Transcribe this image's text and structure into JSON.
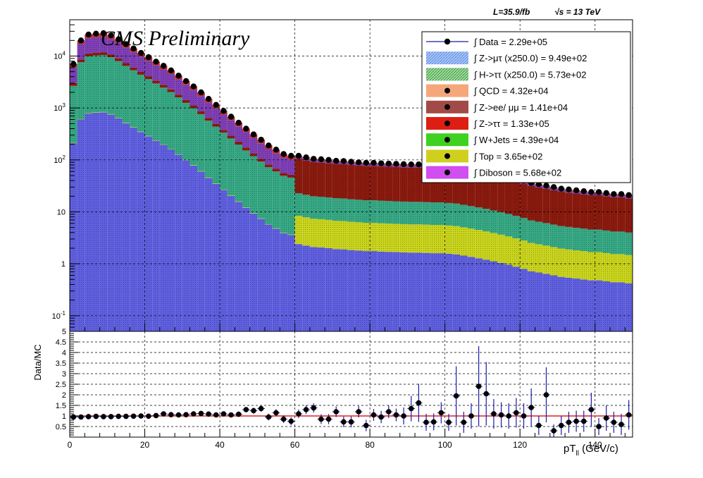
{
  "header": {
    "lumi": "L=35.9/fb",
    "energy": "√s = 13 TeV",
    "cms_label": "CMS Preliminary"
  },
  "chart_data": [
    {
      "type": "bar",
      "subtype": "stacked-histogram-log",
      "xlim": [
        0,
        150
      ],
      "ylog": true,
      "ylim": [
        0.05,
        50000
      ],
      "y_tick_labels": [
        {
          "v": 0.1,
          "label": "10^{-1}"
        },
        {
          "v": 1,
          "label": "1"
        },
        {
          "v": 10,
          "label": "10"
        },
        {
          "v": 100,
          "label": "10^{2}"
        },
        {
          "v": 1000,
          "label": "10^{3}"
        },
        {
          "v": 10000,
          "label": "10^{4}"
        }
      ],
      "bin_width": 2,
      "grid": true,
      "legend_placement": "top-right",
      "legend": [
        {
          "label": "∫ Data = 2.29e+05",
          "color": "#000000",
          "style": "marker-line"
        },
        {
          "label": "∫ Z->μτ (x250.0) = 9.49e+02",
          "color": "#6fa0ef",
          "style": "hatch"
        },
        {
          "label": "∫ H->ττ (x250.0) = 5.73e+02",
          "color": "#4db34d",
          "style": "hatch"
        },
        {
          "label": "∫ QCD = 4.32e+04",
          "color": "#f5a77a",
          "style": "fill"
        },
        {
          "label": "∫ Z->ee/ μμ = 1.41e+04",
          "color": "#a24a47",
          "style": "fill"
        },
        {
          "label": "∫ Z->ττ = 1.33e+05",
          "color": "#de1e13",
          "style": "fill"
        },
        {
          "label": "∫ W+Jets = 4.39e+04",
          "color": "#3fd11f",
          "style": "fill"
        },
        {
          "label": "∫ Top = 3.65e+02",
          "color": "#cfd01e",
          "style": "fill"
        },
        {
          "label": "∫ Diboson = 5.68e+02",
          "color": "#d14ef0",
          "style": "fill"
        }
      ],
      "stack_order": [
        "Diboson",
        "Top",
        "W+Jets",
        "Z->ττ",
        "Z->ee/μμ",
        "QCD"
      ],
      "stack_colors": [
        "#5f5fe0",
        "#c9d41c",
        "#36a884",
        "#8b1a0e",
        "#7e3fb6",
        "#c43030"
      ],
      "data_points": {
        "x": [
          1,
          3,
          5,
          7,
          9,
          11,
          13,
          15,
          17,
          19,
          21,
          23,
          25,
          27,
          29,
          31,
          33,
          35,
          37,
          39,
          41,
          43,
          45,
          47,
          49,
          51,
          53,
          55,
          57,
          59,
          61,
          63,
          65,
          67,
          69,
          71,
          73,
          75,
          77,
          79,
          81,
          83,
          85,
          87,
          89,
          91,
          93,
          95,
          97,
          99,
          101,
          103,
          105,
          107,
          109,
          111,
          113,
          115,
          117,
          119,
          121,
          123,
          125,
          127,
          129,
          131,
          133,
          135,
          137,
          139,
          141,
          143,
          145,
          147,
          149
        ],
        "y": [
          7000,
          20000,
          26000,
          27000,
          27500,
          25000,
          21000,
          17000,
          14000,
          11500,
          9500,
          7800,
          6500,
          5300,
          4200,
          3300,
          2600,
          2000,
          1500,
          1150,
          880,
          680,
          520,
          400,
          310,
          245,
          190,
          158,
          130,
          120,
          120,
          112,
          105,
          103,
          100,
          96,
          95,
          92,
          90,
          88,
          88,
          86,
          85,
          84,
          83,
          82,
          82,
          81,
          80,
          80,
          78,
          76,
          72,
          68,
          64,
          60,
          56,
          52,
          48,
          44,
          40,
          36,
          34,
          32,
          30,
          28,
          27,
          26,
          25,
          24,
          24,
          23,
          22,
          22,
          21
        ]
      },
      "mc_total": [
        7000,
        20000,
        26000,
        27000,
        27500,
        25000,
        21000,
        17000,
        14000,
        11500,
        9500,
        7800,
        6500,
        5300,
        4200,
        3300,
        2600,
        2000,
        1500,
        1150,
        880,
        680,
        520,
        400,
        310,
        245,
        190,
        158,
        130,
        120,
        120,
        112,
        105,
        103,
        100,
        96,
        95,
        92,
        90,
        88,
        88,
        86,
        85,
        84,
        83,
        82,
        82,
        81,
        80,
        80,
        78,
        76,
        72,
        68,
        64,
        60,
        56,
        52,
        48,
        44,
        40,
        36,
        34,
        32,
        30,
        28,
        27,
        26,
        25,
        24,
        24,
        23,
        22,
        22,
        21
      ]
    },
    {
      "type": "scatter",
      "subtype": "ratio-with-errors",
      "xlabel": "pT_{ll} (GeV/c)",
      "ylabel": "Data/MC",
      "xlim": [
        0,
        150
      ],
      "ylim": [
        0,
        5
      ],
      "x_ticks": [
        0,
        20,
        40,
        60,
        80,
        100,
        120,
        140
      ],
      "y_ticks": [
        0.5,
        1,
        1.5,
        2,
        2.5,
        3,
        3.5,
        4,
        4.5,
        5
      ],
      "reference_line": 1,
      "reference_color": "#e02020",
      "grid": true,
      "x": [
        1,
        3,
        5,
        7,
        9,
        11,
        13,
        15,
        17,
        19,
        21,
        23,
        25,
        27,
        29,
        31,
        33,
        35,
        37,
        39,
        41,
        43,
        45,
        47,
        49,
        51,
        53,
        55,
        57,
        59,
        61,
        63,
        65,
        67,
        69,
        71,
        73,
        75,
        77,
        79,
        81,
        83,
        85,
        87,
        89,
        91,
        93,
        95,
        97,
        99,
        101,
        103,
        105,
        107,
        109,
        111,
        113,
        115,
        117,
        119,
        121,
        123,
        125,
        127,
        129,
        131,
        133,
        135,
        137,
        139,
        141,
        143,
        145,
        147,
        149
      ],
      "y": [
        0.95,
        0.95,
        0.97,
        0.98,
        0.97,
        0.97,
        0.98,
        0.98,
        0.99,
        1.0,
        0.99,
        1.02,
        1.1,
        1.06,
        1.05,
        1.06,
        1.1,
        1.12,
        1.09,
        1.05,
        1.1,
        1.05,
        1.08,
        1.3,
        1.25,
        1.35,
        0.95,
        1.15,
        0.85,
        0.75,
        1.1,
        1.3,
        1.38,
        0.85,
        0.85,
        1.2,
        0.72,
        0.72,
        1.2,
        0.55,
        1.05,
        0.95,
        1.2,
        1.05,
        1.0,
        1.35,
        1.62,
        0.7,
        0.72,
        1.15,
        0.7,
        1.95,
        0.7,
        1.0,
        2.4,
        2.05,
        1.1,
        1.05,
        1.0,
        1.15,
        1.0,
        1.4,
        0.55,
        2.0,
        0.3,
        0.55,
        0.7,
        0.75,
        0.75,
        1.3,
        0.5,
        0.9,
        0.7,
        0.6,
        1.05
      ],
      "err": [
        0.02,
        0.02,
        0.02,
        0.02,
        0.02,
        0.02,
        0.02,
        0.02,
        0.02,
        0.03,
        0.03,
        0.03,
        0.04,
        0.04,
        0.04,
        0.05,
        0.05,
        0.06,
        0.06,
        0.07,
        0.08,
        0.09,
        0.1,
        0.12,
        0.14,
        0.15,
        0.16,
        0.17,
        0.18,
        0.19,
        0.2,
        0.21,
        0.22,
        0.23,
        0.24,
        0.25,
        0.25,
        0.26,
        0.27,
        0.27,
        0.28,
        0.29,
        0.3,
        0.3,
        0.4,
        0.6,
        0.9,
        0.4,
        0.4,
        0.5,
        0.4,
        1.4,
        0.5,
        0.6,
        1.9,
        1.5,
        0.7,
        0.6,
        0.6,
        0.7,
        0.6,
        0.9,
        0.45,
        1.3,
        0.3,
        0.45,
        0.5,
        0.5,
        0.5,
        0.8,
        0.4,
        0.6,
        0.5,
        0.5,
        0.7
      ]
    }
  ]
}
